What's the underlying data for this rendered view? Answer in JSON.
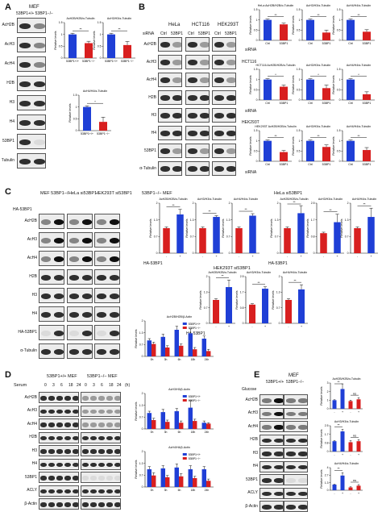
{
  "panels": {
    "A": {
      "letter": "A"
    },
    "B": {
      "letter": "B"
    },
    "C": {
      "letter": "C"
    },
    "D": {
      "letter": "D"
    },
    "E": {
      "letter": "E"
    }
  },
  "labels": {
    "mef": "MEF",
    "genotype_header": "53BP1+/+ 53BP1−/−",
    "sirna": "siRNA",
    "ctrl": "Ctrl",
    "bp1": "53BP1",
    "hela": "HeLa",
    "hct116": "HCT116",
    "hek293t": "HEK293T",
    "ha53bp1": "HA-53BP1",
    "plus": "+",
    "minus": "-",
    "mef_ko": "MEF 53BP1−/−",
    "hela_si": "HeLa si53BP1",
    "hek_si": "HEK293T si53BP1",
    "serum": "Serum",
    "time_points": [
      "0",
      "3",
      "6",
      "18",
      "24",
      "0",
      "3",
      "6",
      "18",
      "24",
      "(h)"
    ],
    "mef_wt": "53BP1+/+ MEF",
    "mef_ko2": "53BP1−/− MEF",
    "glucose": "Glucose",
    "wt_short": "53BP1+/+",
    "ko_short": "53BP1−/−",
    "relative_levels": "Relative levels",
    "hct116_row": "HCT116",
    "hek293t_row": "HEK293T",
    "mef_title_c": "53BP1−/− MEF",
    "hela_title_c": "HeLa si53BP1",
    "hek_title_c": "HEK293T si53BP1",
    "ns": "ns",
    "dstar": "**",
    "star": "*"
  },
  "blot_rows": {
    "A": [
      "AcH2B",
      "AcH3",
      "AcH4",
      "H2B",
      "H3",
      "H4",
      "53BP1",
      "Tubulin"
    ],
    "B": [
      "AcH2B",
      "AcH3",
      "AcH4",
      "H2B",
      "H3",
      "H4",
      "53BP1",
      "α-Tubulin"
    ],
    "C": [
      "AcH2B",
      "AcH3",
      "AcH4",
      "H2B",
      "H3",
      "H4",
      "HA-53BP1",
      "α-Tubulin"
    ],
    "D": [
      "AcH2B",
      "AcH3",
      "AcH4",
      "H2B",
      "H3",
      "H4",
      "53BP1",
      "ACLY",
      "β-Actin"
    ],
    "E": [
      "AcH2B",
      "AcH3",
      "AcH4",
      "H2B",
      "H3",
      "H4",
      "53BP1",
      "ACLY",
      "β-Actin"
    ]
  },
  "chart_data": [
    {
      "id": "A1",
      "type": "bar",
      "title": "AcH2B/H2B/α-Tubulin",
      "categories": [
        "53BP1+/+",
        "53BP1−/−"
      ],
      "values": [
        1.0,
        0.63
      ],
      "errors": [
        0.05,
        0.08
      ],
      "ylim": [
        0,
        1.5
      ],
      "ylabel": "Relative levels",
      "sig": "**"
    },
    {
      "id": "A2",
      "type": "bar",
      "title": "AcH3/H3/α-Tubulin",
      "categories": [
        "53BP1+/+",
        "53BP1−/−"
      ],
      "values": [
        1.0,
        0.55
      ],
      "errors": [
        0.05,
        0.15
      ],
      "ylim": [
        0,
        1.5
      ],
      "ylabel": "",
      "sig": "**"
    },
    {
      "id": "A3",
      "type": "bar",
      "title": "AcH4/H4/α-Tubulin",
      "categories": [
        "53BP1+/+",
        "53BP1−/−"
      ],
      "values": [
        1.0,
        0.37
      ],
      "errors": [
        0.05,
        0.2
      ],
      "ylim": [
        0,
        1.5
      ],
      "ylabel": "Relative levels",
      "sig": "*"
    },
    {
      "id": "B1",
      "type": "bar",
      "title": "HeLa AcH2B/H2B/α-Tubulin",
      "categories": [
        "Ctrl",
        "53BP1"
      ],
      "values": [
        1.0,
        0.78
      ],
      "errors": [
        0.04,
        0.06
      ],
      "ylim": [
        0,
        1.5
      ],
      "sig": "**"
    },
    {
      "id": "B2",
      "type": "bar",
      "title": "AcH3/H3/α-Tubulin",
      "categories": [
        "Ctrl",
        "53BP1"
      ],
      "values": [
        1.0,
        0.38
      ],
      "errors": [
        0.04,
        0.12
      ],
      "ylim": [
        0,
        1.5
      ],
      "sig": "**"
    },
    {
      "id": "B3",
      "type": "bar",
      "title": "AcH4/H4/α-Tubulin",
      "categories": [
        "Ctrl",
        "53BP1"
      ],
      "values": [
        1.0,
        0.42
      ],
      "errors": [
        0.04,
        0.1
      ],
      "ylim": [
        0,
        1.5
      ],
      "sig": "**"
    },
    {
      "id": "B4",
      "type": "bar",
      "title": "HCT116 AcH2B/H2B/α-Tubulin",
      "categories": [
        "Ctrl",
        "53BP1"
      ],
      "values": [
        1.0,
        0.65
      ],
      "errors": [
        0.04,
        0.08
      ],
      "ylim": [
        0,
        1.5
      ],
      "sig": "*"
    },
    {
      "id": "B5",
      "type": "bar",
      "title": "AcH3/H3/α-Tubulin",
      "categories": [
        "Ctrl",
        "53BP1"
      ],
      "values": [
        1.0,
        0.58
      ],
      "errors": [
        0.04,
        0.15
      ],
      "ylim": [
        0,
        1.5
      ],
      "sig": "*"
    },
    {
      "id": "B6",
      "type": "bar",
      "title": "AcH4/H4/α-Tubulin",
      "categories": [
        "Ctrl",
        "53BP1"
      ],
      "values": [
        1.0,
        0.28
      ],
      "errors": [
        0.04,
        0.12
      ],
      "ylim": [
        0,
        1.5
      ],
      "sig": "*"
    },
    {
      "id": "B7",
      "type": "bar",
      "title": "HEK293T AcH2B/H2B/α-Tubulin",
      "categories": [
        "Ctrl",
        "53BP1"
      ],
      "values": [
        1.0,
        0.45
      ],
      "errors": [
        0.04,
        0.08
      ],
      "ylim": [
        0,
        1.5
      ],
      "sig": "**"
    },
    {
      "id": "B8",
      "type": "bar",
      "title": "AcH3/H3/α-Tubulin",
      "categories": [
        "Ctrl",
        "53BP1"
      ],
      "values": [
        1.0,
        0.7
      ],
      "errors": [
        0.04,
        0.1
      ],
      "ylim": [
        0,
        1.5
      ],
      "sig": "**"
    },
    {
      "id": "B9",
      "type": "bar",
      "title": "AcH4/H4/α-Tubulin",
      "categories": [
        "Ctrl",
        "53BP1"
      ],
      "values": [
        1.0,
        0.55
      ],
      "errors": [
        0.04,
        0.12
      ],
      "ylim": [
        0,
        1.5
      ],
      "sig": "**"
    },
    {
      "id": "C1",
      "type": "bar",
      "title": "AcH2B/H2B/α-Tubulin",
      "categories": [
        "-",
        "+"
      ],
      "values": [
        1.0,
        1.55
      ],
      "errors": [
        0.05,
        0.2
      ],
      "ylim": [
        0,
        2.0
      ],
      "sig": "**"
    },
    {
      "id": "C2",
      "type": "bar",
      "title": "AcH3/H3/α-Tubulin",
      "categories": [
        "-",
        "+"
      ],
      "values": [
        1.0,
        1.45
      ],
      "errors": [
        0.05,
        0.05
      ],
      "ylim": [
        0,
        2.0
      ],
      "sig": "**"
    },
    {
      "id": "C3",
      "type": "bar",
      "title": "AcH4/H4/α-Tubulin",
      "categories": [
        "-",
        "+"
      ],
      "values": [
        1.0,
        1.5
      ],
      "errors": [
        0.05,
        0.08
      ],
      "ylim": [
        0,
        2.0
      ],
      "sig": "**"
    },
    {
      "id": "C4",
      "type": "bar",
      "title": "AcH2B/H2B/α-Tubulin",
      "categories": [
        "-",
        "+"
      ],
      "values": [
        1.0,
        1.6
      ],
      "errors": [
        0.05,
        0.3
      ],
      "ylim": [
        0,
        2.0
      ],
      "sig": "**"
    },
    {
      "id": "C5",
      "type": "bar",
      "title": "AcH3/H3/α-Tubulin",
      "categories": [
        "-",
        "+"
      ],
      "values": [
        1.0,
        1.55
      ],
      "errors": [
        0.05,
        0.4
      ],
      "ylim": [
        0,
        2.5
      ],
      "sig": "**"
    },
    {
      "id": "C6",
      "type": "bar",
      "title": "AcH4/H4/α-Tubulin",
      "categories": [
        "-",
        "+"
      ],
      "values": [
        1.0,
        1.45
      ],
      "errors": [
        0.05,
        0.35
      ],
      "ylim": [
        0,
        2.0
      ],
      "sig": "**"
    },
    {
      "id": "C7",
      "type": "bar",
      "title": "AcH2B/H2B/α-Tubulin",
      "categories": [
        "-",
        "+"
      ],
      "values": [
        1.0,
        1.55
      ],
      "errors": [
        0.05,
        0.3
      ],
      "ylim": [
        0,
        2.0
      ],
      "sig": "**"
    },
    {
      "id": "C8",
      "type": "bar",
      "title": "AcH3/H3/α-Tubulin",
      "categories": [
        "-",
        "+"
      ],
      "values": [
        1.0,
        1.85
      ],
      "errors": [
        0.05,
        0.1
      ],
      "ylim": [
        0,
        2.5
      ],
      "sig": "**"
    },
    {
      "id": "C9",
      "type": "bar",
      "title": "AcH4/H4/α-Tubulin",
      "categories": [
        "-",
        "+"
      ],
      "values": [
        1.0,
        1.45
      ],
      "errors": [
        0.05,
        0.2
      ],
      "ylim": [
        0,
        2.0
      ],
      "sig": "**"
    },
    {
      "id": "D1",
      "type": "bar",
      "title": "AcH2B/H2B/β-Actin",
      "categories": [
        "0h",
        "3h",
        "6h",
        "18h",
        "24h"
      ],
      "series": [
        {
          "name": "53BP1+/+",
          "values": [
            0.9,
            1.1,
            1.5,
            1.3,
            1.0
          ]
        },
        {
          "name": "53BP1−/−",
          "values": [
            0.7,
            0.5,
            0.6,
            0.4,
            0.3
          ]
        }
      ],
      "errors": [
        [
          0.1,
          0.15,
          0.2,
          0.25,
          0.15
        ],
        [
          0.1,
          0.1,
          0.1,
          0.1,
          0.1
        ]
      ],
      "ylim": [
        0,
        2.0
      ]
    },
    {
      "id": "D2",
      "type": "bar",
      "title": "AcH3/H3/β-Actin",
      "categories": [
        "0h",
        "3h",
        "6h",
        "18h",
        "24h"
      ],
      "series": [
        {
          "name": "53BP1+/+",
          "values": [
            0.9,
            0.95,
            1.0,
            1.2,
            0.35
          ]
        },
        {
          "name": "53BP1−/−",
          "values": [
            0.5,
            0.4,
            0.35,
            0.45,
            0.3
          ]
        }
      ],
      "errors": [
        [
          0.1,
          0.15,
          0.15,
          0.4,
          0.1
        ],
        [
          0.1,
          0.1,
          0.1,
          0.1,
          0.05
        ]
      ],
      "ylim": [
        0,
        2.0
      ]
    },
    {
      "id": "D3",
      "type": "bar",
      "title": "AcH4/H4/β-Actin",
      "categories": [
        "0h",
        "3h",
        "6h",
        "18h",
        "24h"
      ],
      "series": [
        {
          "name": "53BP1+/+",
          "values": [
            1.0,
            1.05,
            1.1,
            1.0,
            1.0
          ]
        },
        {
          "name": "53BP1−/−",
          "values": [
            0.65,
            0.55,
            0.6,
            0.5,
            0.35
          ]
        }
      ],
      "errors": [
        [
          0.15,
          0.15,
          0.2,
          0.2,
          0.15
        ],
        [
          0.15,
          0.1,
          0.15,
          0.1,
          0.1
        ]
      ],
      "ylim": [
        0,
        2.0
      ]
    },
    {
      "id": "E1",
      "type": "bar",
      "title": "AcH2B/H2B/α-Tubulin",
      "categories": [
        "-",
        "+",
        "-",
        "+"
      ],
      "colors": [
        "blue",
        "blue",
        "red",
        "red"
      ],
      "values": [
        1.0,
        2.3,
        0.9,
        1.1
      ],
      "errors": [
        0.05,
        0.6,
        0.1,
        0.2
      ],
      "ylim": [
        0,
        3.0
      ],
      "sig": [
        "**",
        "ns"
      ]
    },
    {
      "id": "E2",
      "type": "bar",
      "title": "AcH3/H3/α-Tubulin",
      "categories": [
        "-",
        "+",
        "-",
        "+"
      ],
      "colors": [
        "blue",
        "blue",
        "red",
        "red"
      ],
      "values": [
        1.0,
        1.95,
        0.9,
        1.0
      ],
      "errors": [
        0.05,
        0.2,
        0.15,
        0.15
      ],
      "ylim": [
        0,
        2.5
      ],
      "sig": [
        "**",
        "ns"
      ]
    },
    {
      "id": "E3",
      "type": "bar",
      "title": "AcH4/H4/α-Tubulin",
      "categories": [
        "-",
        "+",
        "-",
        "+"
      ],
      "colors": [
        "blue",
        "blue",
        "red",
        "red"
      ],
      "values": [
        1.0,
        2.6,
        0.5,
        0.8
      ],
      "errors": [
        0.05,
        0.5,
        0.1,
        0.2
      ],
      "ylim": [
        0,
        4.0
      ],
      "sig": [
        "**",
        "ns"
      ]
    }
  ],
  "colors": {
    "blue": "#1f3fd6",
    "red": "#d81f1f",
    "blot_bg": "#ececec"
  }
}
